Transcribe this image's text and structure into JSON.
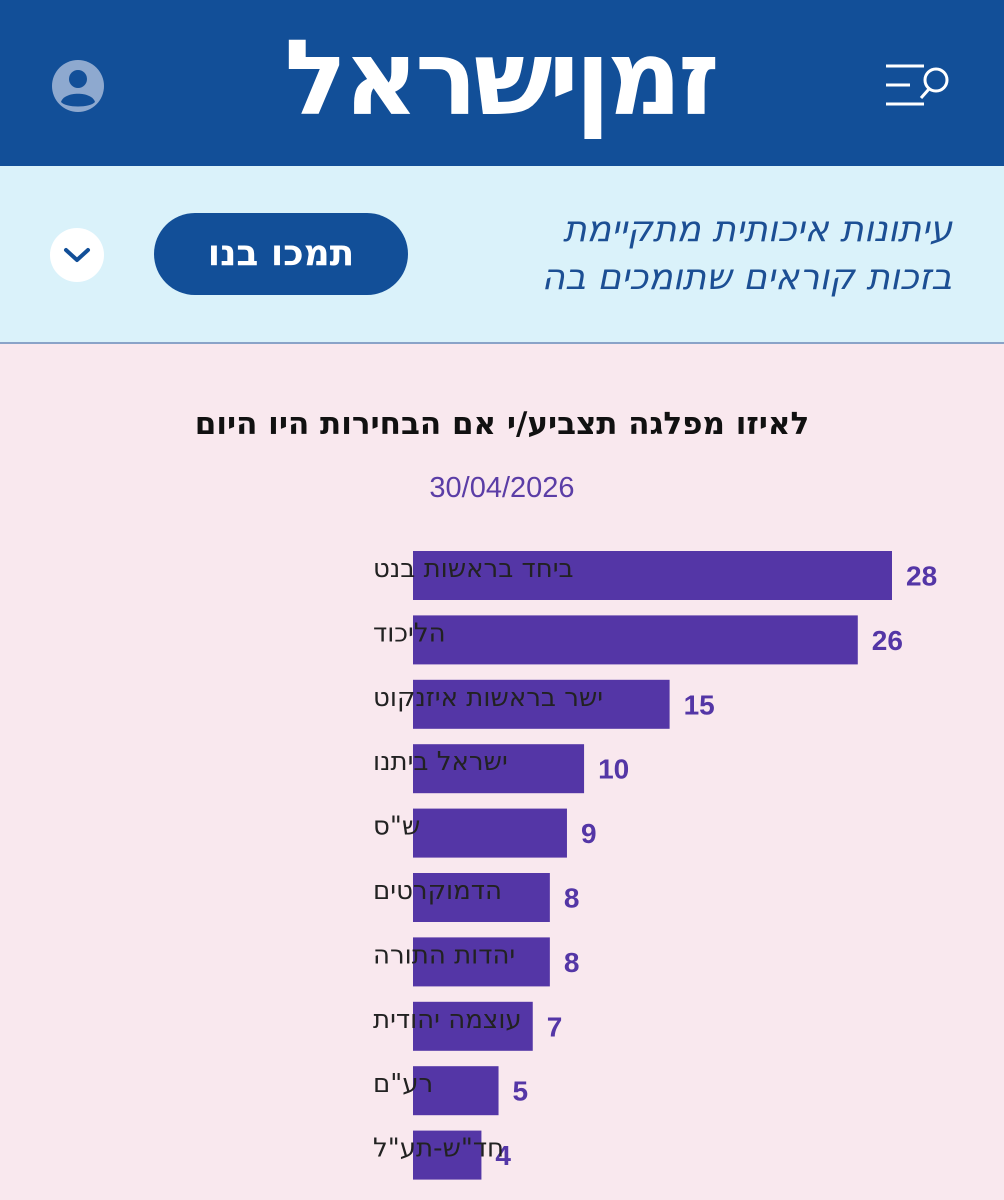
{
  "header": {
    "logo_text": "זמןישראל",
    "avatar_icon": "user-avatar-icon",
    "menu_icon": "menu-search-icon",
    "background_color": "#124f98"
  },
  "banner": {
    "line1": "עיתונות איכותית מתקיימת",
    "line2": "בזכות קוראים שתומכים בה",
    "support_button_label": "תמכו בנו",
    "expand_icon": "chevron-down-icon",
    "background_color": "#daf2fa"
  },
  "chart_data": {
    "type": "bar",
    "orientation": "horizontal",
    "title": "לאיזו מפלגה תצביע/י אם הבחירות היו היום",
    "subtitle": "30/04/2026",
    "categories": [
      "ביחד בראשות בנט",
      "הליכוד",
      "ישר בראשות איזנקוט",
      "ישראל ביתנו",
      "ש\"ס",
      "הדמוקרטים",
      "יהדות התורה",
      "עוצמה יהודית",
      "רע\"ם",
      "חד\"ש-תע\"ל"
    ],
    "values": [
      28,
      26,
      15,
      10,
      9,
      8,
      8,
      7,
      5,
      4
    ],
    "bar_color": "#5436a6",
    "xlim": [
      0,
      28
    ],
    "grid": false,
    "legend": "none"
  }
}
